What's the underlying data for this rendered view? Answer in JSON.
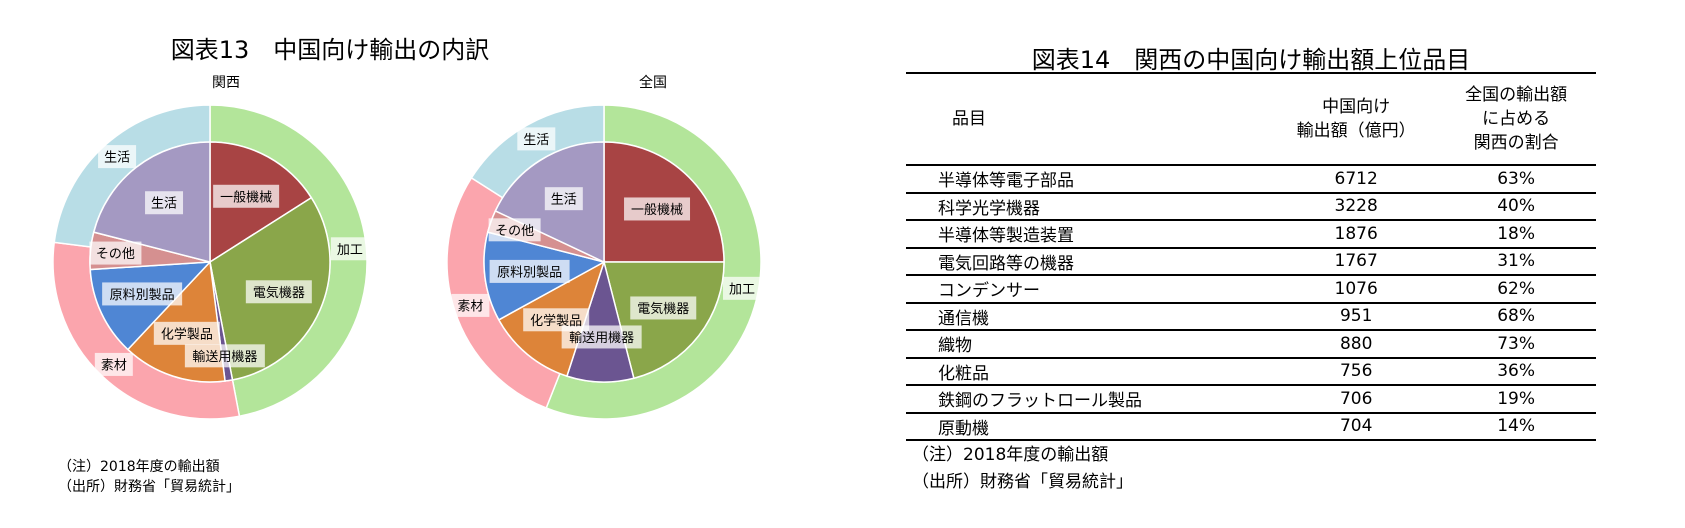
{
  "left_title": "図表13　中国向け輸出の内訳",
  "chart_data": [
    {
      "type": "pie",
      "title": "関西",
      "inner": [
        {
          "label": "一般機械",
          "value": 16,
          "color": "#a84444"
        },
        {
          "label": "電気機器",
          "value": 31,
          "color": "#8aa64a"
        },
        {
          "label": "輸送用機器",
          "value": 1,
          "color": "#6b5591"
        },
        {
          "label": "化学製品",
          "value": 14,
          "color": "#dd8439"
        },
        {
          "label": "原料別製品",
          "value": 12,
          "color": "#4f86d4"
        },
        {
          "label": "その他",
          "value": 5,
          "color": "#d59090"
        },
        {
          "label": "生活",
          "value": 21,
          "color": "#a499c2"
        }
      ],
      "outer": [
        {
          "label": "加工",
          "value": 47,
          "color": "#b3e59a"
        },
        {
          "label": "素材",
          "value": 30,
          "color": "#fba5ad"
        },
        {
          "label": "生活",
          "value": 23,
          "color": "#b8dde6"
        }
      ]
    },
    {
      "type": "pie",
      "title": "全国",
      "inner": [
        {
          "label": "一般機械",
          "value": 25,
          "color": "#a84444"
        },
        {
          "label": "電気機器",
          "value": 21,
          "color": "#8aa64a"
        },
        {
          "label": "輸送用機器",
          "value": 9,
          "color": "#6b5591"
        },
        {
          "label": "化学製品",
          "value": 12,
          "color": "#dd8439"
        },
        {
          "label": "原料別製品",
          "value": 12,
          "color": "#4f86d4"
        },
        {
          "label": "その他",
          "value": 3,
          "color": "#d59090"
        },
        {
          "label": "生活",
          "value": 18,
          "color": "#a499c2"
        }
      ],
      "outer": [
        {
          "label": "加工",
          "value": 56,
          "color": "#b3e59a"
        },
        {
          "label": "素材",
          "value": 28,
          "color": "#fba5ad"
        },
        {
          "label": "生活",
          "value": 16,
          "color": "#b8dde6"
        }
      ]
    },
    {
      "type": "table",
      "title": "図表14　関西の中国向け輸出額上位品目",
      "columns": [
        "品目",
        "中国向け\n輸出額（億円）",
        "全国の輸出額\nに占める\n関西の割合"
      ],
      "rows": [
        [
          "半導体等電子部品",
          "6712",
          "63%"
        ],
        [
          "科学光学機器",
          "3228",
          "40%"
        ],
        [
          "半導体等製造装置",
          "1876",
          "18%"
        ],
        [
          "電気回路等の機器",
          "1767",
          "31%"
        ],
        [
          "コンデンサー",
          "1076",
          "62%"
        ],
        [
          "通信機",
          "951",
          "68%"
        ],
        [
          "織物",
          "880",
          "73%"
        ],
        [
          "化粧品",
          "756",
          "36%"
        ],
        [
          "鉄鋼のフラットロール製品",
          "706",
          "19%"
        ],
        [
          "原動機",
          "704",
          "14%"
        ]
      ]
    }
  ],
  "notes_left": [
    "（注）2018年度の輸出額",
    "（出所）財務省「貿易統計」"
  ],
  "notes_right": [
    "（注）2018年度の輸出額",
    "（出所）財務省「貿易統計」"
  ]
}
